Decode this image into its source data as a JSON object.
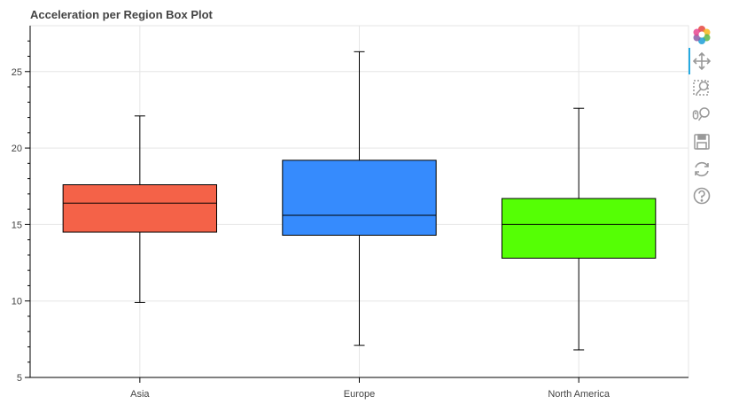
{
  "chart_data": {
    "type": "box",
    "title": "Acceleration per Region Box Plot",
    "xlabel": "",
    "ylabel": "",
    "ylim": [
      5,
      28
    ],
    "y_ticks": [
      5,
      10,
      15,
      20,
      25
    ],
    "grid": true,
    "categories": [
      "Asia",
      "Europe",
      "North America"
    ],
    "boxes": [
      {
        "category": "Asia",
        "whisker_low": 9.9,
        "q1": 14.5,
        "median": 16.4,
        "q3": 17.6,
        "whisker_high": 22.1,
        "color": "#f46248"
      },
      {
        "category": "Europe",
        "whisker_low": 7.1,
        "q1": 14.3,
        "median": 15.6,
        "q3": 19.2,
        "whisker_high": 26.3,
        "color": "#368bfd"
      },
      {
        "category": "North America",
        "whisker_low": 6.8,
        "q1": 12.8,
        "median": 15.0,
        "q3": 16.7,
        "whisker_high": 22.6,
        "color": "#55ff05"
      }
    ]
  },
  "toolbar": {
    "tools": [
      "bokeh-logo-icon",
      "pan-icon",
      "box-zoom-icon",
      "wheel-zoom-icon",
      "save-icon",
      "reset-icon",
      "help-icon"
    ]
  }
}
